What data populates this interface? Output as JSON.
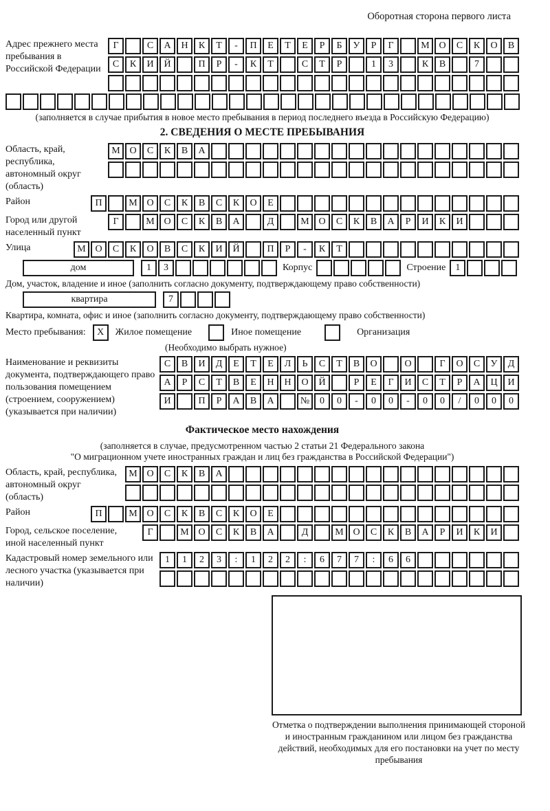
{
  "header": {
    "title": "Оборотная сторона первого листа"
  },
  "prev_address": {
    "label": "Адрес прежнего места пребывания в Российской Федерации",
    "line1": {
      "text": "Г САНКТ-ПЕТЕРБУРГ МОСКОВ",
      "len": 24
    },
    "line2": {
      "text": "СКИЙ ПР-КТ СТР 13 КВ 7",
      "len": 24
    },
    "line3": {
      "text": "",
      "len": 24
    },
    "line4": {
      "text": "",
      "len": 30
    },
    "note": "(заполняется в случае прибытия в новое место пребывания в период последнего въезда в Российскую Федерацию)"
  },
  "section2": {
    "title": "2. СВЕДЕНИЯ О МЕСТЕ ПРЕБЫВАНИЯ",
    "region": {
      "label": "Область, край, республика, автономный округ (область)",
      "line1": {
        "text": "МОСКВА",
        "len": 24
      },
      "line2": {
        "text": "",
        "len": 24
      }
    },
    "district": {
      "label": "Район",
      "line": {
        "text": "П МОСКВСКОЕ",
        "len": 25
      }
    },
    "city": {
      "label": "Город или другой населенный пункт",
      "line": {
        "text": "Г МОСКВА Д МОСКВАРИКИ",
        "len": 24
      }
    },
    "street": {
      "label": "Улица",
      "line": {
        "text": "МОСКОВСКИЙ ПР-КТ",
        "len": 26
      }
    },
    "house": {
      "house_label": "дом",
      "house_cells": {
        "text": "13",
        "len": 8
      },
      "korpus_label": "Корпус",
      "korpus_cells": {
        "text": "",
        "len": 5
      },
      "stroenie_label": "Строение",
      "stroenie_cells": {
        "text": "1",
        "len": 4
      }
    },
    "house_note": "Дом, участок, владение и иное (заполнить согласно документу, подтверждающему право собственности)",
    "apartment": {
      "label": "квартира",
      "cells": {
        "text": "7",
        "len": 4
      }
    },
    "apartment_note": "Квартира, комната, офис и иное (заполнить согласно документу, подтверждающему право собственности)",
    "place_type": {
      "label": "Место пребывания:",
      "options": [
        {
          "box": "X",
          "label": "Жилое помещение"
        },
        {
          "box": "",
          "label": "Иное помещение"
        },
        {
          "box": "",
          "label": "Организация"
        }
      ],
      "note": "(Необходимо выбрать нужное)"
    },
    "document": {
      "label": "Наименование и реквизиты документа, подтверждающего право пользования помещением (строением, сооружением) (указывается при наличии)",
      "line1": {
        "text": "СВИДЕТЕЛЬСТВО О ГОСУД",
        "len": 21
      },
      "line2": {
        "text": "АРСТВЕННОЙ РЕГИСТРАЦИ",
        "len": 21
      },
      "line3": {
        "text": "И ПРАВА №00-00-00/000",
        "len": 21
      }
    }
  },
  "actual_location": {
    "title": "Фактическое место нахождения",
    "note_line1": "(заполняется в случае, предусмотренном частью 2 статьи 21 Федерального закона",
    "note_line2": "\"О миграционном учете иностранных граждан и лиц без гражданства в Российской Федерации\")",
    "region": {
      "label": "Область, край, республика, автономный округ (область)",
      "line1": {
        "text": "МОСКВА",
        "len": 23
      },
      "line2": {
        "text": "",
        "len": 23
      }
    },
    "district": {
      "label": "Район",
      "line": {
        "text": "П МОСКВСКОЕ",
        "len": 25
      }
    },
    "city": {
      "label": "Город, сельское поселение, иной населенный пункт",
      "line": {
        "text": "Г МОСКВА Д МОСКВАРИКИ",
        "len": 22
      }
    },
    "cadastral": {
      "label": "Кадастровый номер земельного или лесного участка (указывается при наличии)",
      "line1": {
        "text": "1123:122:677:66",
        "len": 21
      },
      "line2": {
        "text": "",
        "len": 21
      }
    }
  },
  "stamp": {
    "caption": "Отметка о подтверждении выполнения принимающей стороной и иностранным гражданином или лицом без гражданства действий, необходимых для его постановки на учет по месту пребывания"
  }
}
